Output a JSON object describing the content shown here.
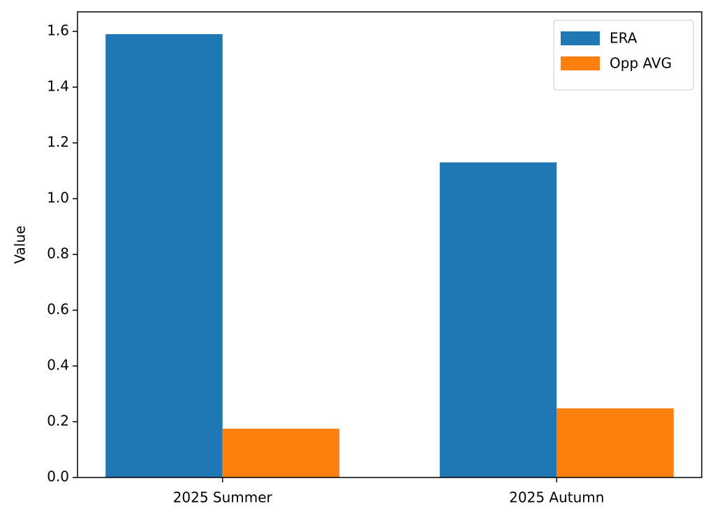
{
  "chart_data": {
    "type": "bar",
    "y_label": "Value",
    "categories": [
      "2025 Summer",
      "2025 Autumn"
    ],
    "series": [
      {
        "name": "ERA",
        "color": "#1f77b4",
        "values": [
          1.59,
          1.13
        ]
      },
      {
        "name": "Opp AVG",
        "color": "#ff7f0e",
        "values": [
          0.175,
          0.248
        ]
      }
    ],
    "ylim": [
      0,
      1.67
    ],
    "yticks": [
      {
        "value": 0,
        "label": "0.0"
      },
      0.2,
      0.4,
      0.6,
      0.8,
      {
        "value": 1,
        "label": "1.0"
      },
      1.2,
      1.4,
      1.6
    ],
    "legend": "upper right"
  }
}
